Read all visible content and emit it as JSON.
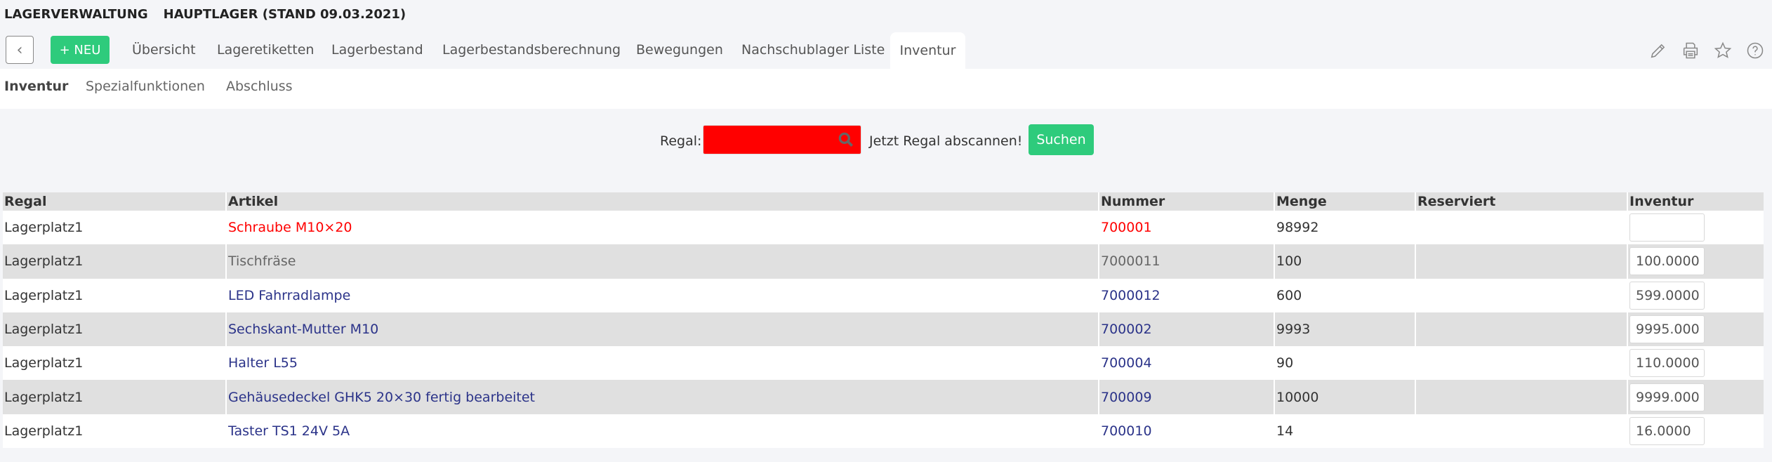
{
  "header": {
    "app": "LAGERVERWALTUNG",
    "subtitle": "HAUPTLAGER (STAND 09.03.2021)"
  },
  "toolbar": {
    "back_icon": "chevron-left-icon",
    "new_label": "+ NEU",
    "tabs": [
      "Übersicht",
      "Lageretiketten",
      "Lagerbestand",
      "Lagerbestandsberechnung",
      "Bewegungen",
      "Nachschublager Liste",
      "Inventur"
    ],
    "active_tab": "Inventur",
    "icons": [
      "pencil-icon",
      "printer-icon",
      "star-icon",
      "help-icon"
    ]
  },
  "subnav": {
    "items": [
      "Inventur",
      "Spezialfunktionen",
      "Abschluss"
    ],
    "active": "Inventur"
  },
  "search": {
    "label": "Regal:",
    "value": "",
    "hint": "Jetzt Regal abscannen!",
    "button": "Suchen",
    "input_color": "#ff0000"
  },
  "table": {
    "columns": [
      "Regal",
      "Artikel",
      "Nummer",
      "Menge",
      "Reserviert",
      "Inventur"
    ],
    "rows": [
      {
        "regal": "Lagerplatz1",
        "artikel": "Schraube M10×20",
        "nummer": "700001",
        "menge": "98992",
        "reserviert": "",
        "inventur": "",
        "style": "red"
      },
      {
        "regal": "Lagerplatz1",
        "artikel": "Tischfräse",
        "nummer": "7000011",
        "menge": "100",
        "reserviert": "",
        "inventur": "100.0000",
        "style": "gray"
      },
      {
        "regal": "Lagerplatz1",
        "artikel": "LED Fahrradlampe",
        "nummer": "7000012",
        "menge": "600",
        "reserviert": "",
        "inventur": "599.0000",
        "style": "blue"
      },
      {
        "regal": "Lagerplatz1",
        "artikel": "Sechskant-Mutter M10",
        "nummer": "700002",
        "menge": "9993",
        "reserviert": "",
        "inventur": "9995.000",
        "style": "blue"
      },
      {
        "regal": "Lagerplatz1",
        "artikel": "Halter L55",
        "nummer": "700004",
        "menge": "90",
        "reserviert": "",
        "inventur": "110.0000",
        "style": "blue"
      },
      {
        "regal": "Lagerplatz1",
        "artikel": "Gehäusedeckel GHK5 20×30 fertig bearbeitet",
        "nummer": "700009",
        "menge": "10000",
        "reserviert": "",
        "inventur": "9999.000",
        "style": "blue"
      },
      {
        "regal": "Lagerplatz1",
        "artikel": "Taster TS1 24V 5A",
        "nummer": "700010",
        "menge": "14",
        "reserviert": "",
        "inventur": "16.0000",
        "style": "blue"
      }
    ]
  },
  "colors": {
    "accent_green": "#2ecb7c",
    "link_blue": "#2b3389",
    "error_red": "#ff0000"
  }
}
